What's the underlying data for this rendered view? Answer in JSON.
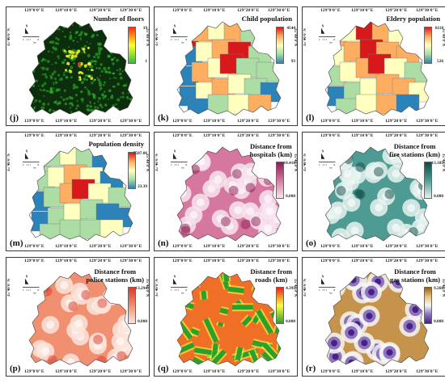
{
  "coord_labels": {
    "top": [
      "129°0'0\"E",
      "129°10'0\"E",
      "129°20'0\"E",
      "129°30'0\"E"
    ],
    "side": "35°40'0\"N",
    "north": "N",
    "scale": [
      "0",
      "2.5",
      "5",
      "10"
    ],
    "scale_unit": "km"
  },
  "panels": [
    {
      "id": "j",
      "label": "(j)",
      "title": [
        "Number of floors"
      ],
      "legend_max": "19",
      "legend_min": "1",
      "colors": [
        "#ff2a10",
        "#ffff30",
        "#30c030"
      ],
      "map": "floors"
    },
    {
      "id": "k",
      "label": "(k)",
      "title": [
        "Child population"
      ],
      "legend_max": "4544",
      "legend_min": "93",
      "colors": [
        "#d7191c",
        "#fdae61",
        "#ffffbf",
        "#abdda4",
        "#2b83ba"
      ],
      "map": "zones"
    },
    {
      "id": "l",
      "label": "(l)",
      "title": [
        "Eldery population"
      ],
      "legend_max": "6118",
      "legend_min": "526",
      "colors": [
        "#d7191c",
        "#fdae61",
        "#ffffbf",
        "#abdda4",
        "#2b83ba"
      ],
      "map": "zones"
    },
    {
      "id": "m",
      "label": "(m)",
      "title": [
        "Population density"
      ],
      "legend_max": "7587.06",
      "legend_min": "23.39",
      "colors": [
        "#d7191c",
        "#fdae61",
        "#ffffbf",
        "#abdda4",
        "#2b83ba"
      ],
      "map": "zones"
    },
    {
      "id": "n",
      "label": "(n)",
      "title": [
        "Distance from",
        "hospitals (km)"
      ],
      "legend_max": "10.416",
      "legend_min": "0.000",
      "colors": [
        "#8e1c54",
        "#d5779e",
        "#f7e4ee"
      ],
      "map": "blobs"
    },
    {
      "id": "o",
      "label": "(o)",
      "title": [
        "Distance from",
        "fire stations (km)"
      ],
      "legend_max": "13.185",
      "legend_min": "0.000",
      "colors": [
        "#0d4b48",
        "#4e9b93",
        "#e6f2ef"
      ],
      "map": "blobs"
    },
    {
      "id": "p",
      "label": "(p)",
      "title": [
        "Distance from",
        "police stations (km)"
      ],
      "legend_max": "13.294",
      "legend_min": "0.000",
      "colors": [
        "#d8392b",
        "#f09070",
        "#fbe4da"
      ],
      "map": "blobs"
    },
    {
      "id": "q",
      "label": "(q)",
      "title": [
        "Distance from",
        "roads (km)"
      ],
      "legend_max": "4.395",
      "legend_min": "0.000",
      "colors": [
        "#e8221a",
        "#ffff40",
        "#2ca02c"
      ],
      "map": "roads"
    },
    {
      "id": "r",
      "label": "(r)",
      "title": [
        "Distance from",
        "gas stations (km)"
      ],
      "legend_max": "9.260",
      "legend_min": "0.000",
      "colors": [
        "#9c5a12",
        "#e9c27c",
        "#f5f5f5",
        "#8a74bf",
        "#4b1f86"
      ],
      "map": "gas"
    }
  ]
}
